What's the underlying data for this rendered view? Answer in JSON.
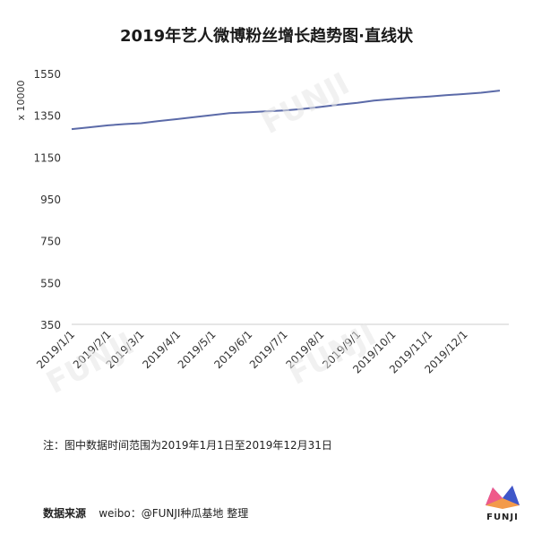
{
  "title": "2019年艺人微博粉丝增长趋势图·直线状",
  "note": "注：图中数据时间范围为2019年1月1日至2019年12月31日",
  "source": {
    "label": "数据来源",
    "value": "weibo：@FUNJI种瓜基地 整理"
  },
  "logo": {
    "text": "FUNJI"
  },
  "watermark": {
    "text": "FUNJI"
  },
  "colors": {
    "line": "#5b6aa8",
    "axis": "#cccccc",
    "text": "#333333"
  },
  "chart_data": {
    "type": "line",
    "title": "2019年艺人微博粉丝增长趋势图·直线状",
    "ylabel": "x 10000",
    "xlabel": "",
    "ylim": [
      350,
      1550
    ],
    "yticks": [
      350,
      550,
      750,
      950,
      1150,
      1350,
      1550
    ],
    "grid": false,
    "categories": [
      "2019/1/1",
      "2019/2/1",
      "2019/3/1",
      "2019/4/1",
      "2019/5/1",
      "2019/6/1",
      "2019/7/1",
      "2019/8/1",
      "2019/9/1",
      "2019/10/1",
      "2019/11/1",
      "2019/12/1"
    ],
    "series": [
      {
        "x": [
          "2019/1/1",
          "2019/1/15",
          "2019/2/1",
          "2019/2/15",
          "2019/3/1",
          "2019/3/15",
          "2019/4/1",
          "2019/4/15",
          "2019/5/1",
          "2019/5/15",
          "2019/6/1",
          "2019/6/15",
          "2019/7/1",
          "2019/7/15",
          "2019/8/1",
          "2019/8/15",
          "2019/9/1",
          "2019/9/15",
          "2019/10/1",
          "2019/10/15",
          "2019/11/1",
          "2019/11/15",
          "2019/12/1",
          "2019/12/15",
          "2019/12/31"
        ],
        "values": [
          1284,
          1292,
          1302,
          1308,
          1312,
          1322,
          1332,
          1341,
          1351,
          1360,
          1365,
          1369,
          1373,
          1380,
          1390,
          1400,
          1410,
          1420,
          1428,
          1434,
          1440,
          1446,
          1452,
          1458,
          1468
        ]
      }
    ]
  }
}
